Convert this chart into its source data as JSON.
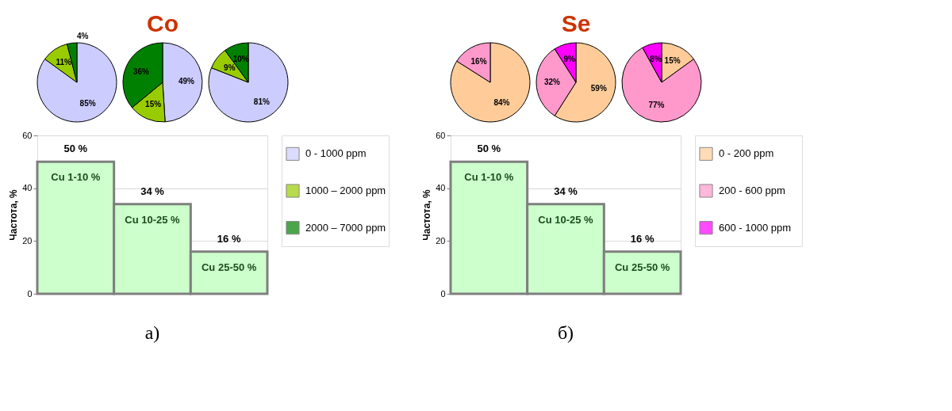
{
  "chart_data": [
    {
      "type": "pie",
      "categories": [
        "0 - 1000 ppm",
        "1000 – 2000 ppm",
        "2000 – 7000 ppm"
      ],
      "values": [
        85,
        11,
        4
      ],
      "colors": [
        "#ccccff",
        "#99cc00",
        "#008000"
      ],
      "value_labels": [
        "85%",
        "11%",
        "4%"
      ],
      "legend": "right"
    },
    {
      "type": "pie",
      "title": "Co",
      "categories": [
        null,
        null,
        null
      ],
      "values": [
        49,
        15,
        36
      ],
      "colors": [
        "#ccccff",
        "#99cc00",
        "#008000"
      ],
      "value_labels": [
        "49%",
        "15%",
        "36%"
      ]
    },
    {
      "type": "pie",
      "categories": [
        null,
        null,
        null
      ],
      "values": [
        81,
        9,
        10
      ],
      "colors": [
        "#ccccff",
        "#99cc00",
        "#008000"
      ],
      "value_labels": [
        "81%",
        "9%",
        "10%"
      ]
    },
    {
      "type": "bar",
      "categories": [
        "Cu 1-10 %",
        "Cu 10-25 %",
        "Cu 25-50 %"
      ],
      "values": [
        50,
        34,
        16
      ],
      "color": "#ccffcc",
      "value_labels": [
        "50 %",
        "34 %",
        "16 %"
      ],
      "ylabel": "Частота, %",
      "ylim": [
        0,
        60
      ],
      "yticks": [
        0,
        20,
        40,
        60
      ],
      "grid": "y",
      "annotations": [
        "а)"
      ]
    },
    {
      "type": "pie",
      "categories": [
        "0 - 200 ppm",
        "200 - 600 ppm",
        "600 - 1000 ppm"
      ],
      "values": [
        84,
        16,
        null
      ],
      "colors": [
        "#ffcc99",
        "#ff99cc",
        "#ff00ff"
      ],
      "value_labels": [
        "84%",
        "16%",
        null
      ],
      "legend": "right"
    },
    {
      "type": "pie",
      "title": "Se",
      "categories": [
        null,
        null,
        null
      ],
      "values": [
        59,
        32,
        9
      ],
      "colors": [
        "#ffcc99",
        "#ff99cc",
        "#ff00ff"
      ],
      "value_labels": [
        "59%",
        "32%",
        "9%"
      ]
    },
    {
      "type": "pie",
      "categories": [
        null,
        null,
        null
      ],
      "values": [
        15,
        77,
        8
      ],
      "colors": [
        "#ffcc99",
        "#ff99cc",
        "#ff00ff"
      ],
      "value_labels": [
        "15%",
        "77%",
        "8%"
      ]
    },
    {
      "type": "bar",
      "categories": [
        "Cu 1-10 %",
        "Cu 10-25 %",
        "Cu 25-50 %"
      ],
      "values": [
        50,
        34,
        16
      ],
      "color": "#ccffcc",
      "value_labels": [
        "50 %",
        "34 %",
        "16 %"
      ],
      "ylabel": "Частота, %",
      "ylim": [
        0,
        60
      ],
      "yticks": [
        0,
        20,
        40,
        60
      ],
      "grid": "y",
      "annotations": [
        "б)"
      ]
    }
  ]
}
